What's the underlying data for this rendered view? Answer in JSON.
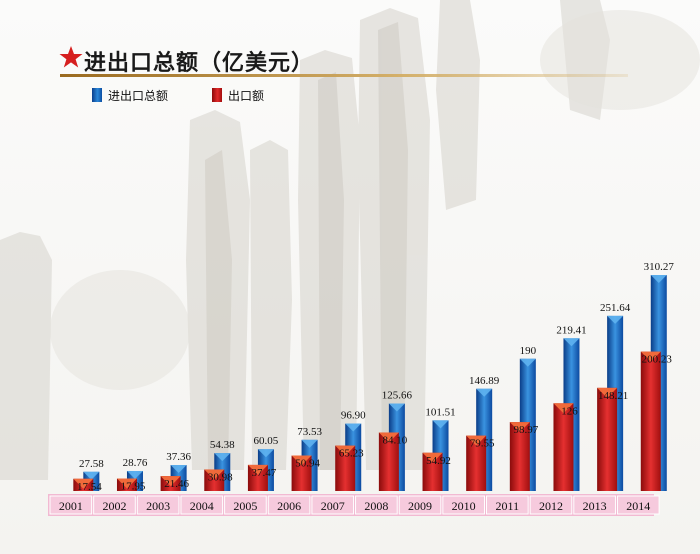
{
  "title": "进出口总额（亿美元）",
  "legend": {
    "total_label": "进出口总额",
    "export_label": "出口额"
  },
  "colors": {
    "total": "#1f6fc4",
    "export": "#d42020",
    "axis_band": "#f2b9d2"
  },
  "chart_data": {
    "type": "bar",
    "title": "进出口总额（亿美元）",
    "categories": [
      "2001",
      "2002",
      "2003",
      "2004",
      "2005",
      "2006",
      "2007",
      "2008",
      "2009",
      "2010",
      "2011",
      "2012",
      "2013",
      "2014"
    ],
    "series": [
      {
        "name": "进出口总额",
        "values": [
          27.58,
          28.76,
          37.36,
          54.38,
          60.05,
          73.53,
          96.9,
          125.66,
          101.51,
          146.89,
          190,
          219.41,
          251.64,
          310.27
        ],
        "labels": [
          "27.58",
          "28.76",
          "37.36",
          "54.38",
          "60.05",
          "73.53",
          "96.90",
          "125.66",
          "101.51",
          "146.89",
          "190",
          "219.41",
          "251.64",
          "310.27"
        ]
      },
      {
        "name": "出口额",
        "values": [
          17.54,
          17.95,
          21.46,
          30.98,
          37.47,
          50.94,
          65.23,
          84.1,
          54.92,
          79.55,
          98.97,
          126,
          148.21,
          200.23
        ],
        "labels": [
          "17.54",
          "17.95",
          "21.46",
          "30.98",
          "37.47",
          "50.94",
          "65.23",
          "84.10",
          "54.92",
          "79.55",
          "98.97",
          "126",
          "148.21",
          "200.23"
        ]
      }
    ],
    "ylim": [
      0,
      320
    ],
    "overlay": true,
    "grid": false,
    "legend_position": "top-left"
  }
}
